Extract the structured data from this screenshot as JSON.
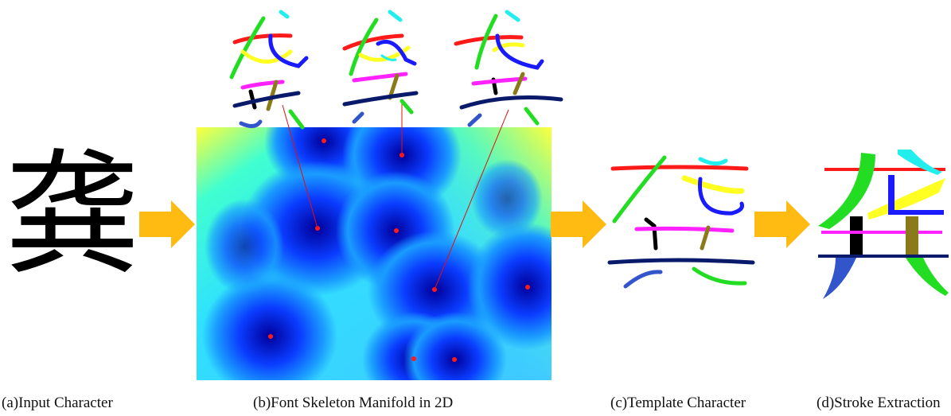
{
  "input_character": "龚",
  "captions": {
    "a": "(a)Input Character",
    "b": "(b)Font Skeleton Manifold in 2D",
    "c": "(c)Template Character",
    "d": "(d)Stroke Extraction"
  },
  "colors": {
    "arrow": "#ffbb11",
    "manifold_low": "#0000b8",
    "manifold_high": "#ffff40",
    "point": "#ff1a1a",
    "stroke_red": "#ff1a1a",
    "stroke_green": "#22dd22",
    "stroke_yellow": "#ffff22",
    "stroke_blue": "#1a1aff",
    "stroke_cyan": "#22eeee",
    "stroke_black": "#000000",
    "stroke_magenta": "#ff22ff",
    "stroke_olive": "#8a7a1a",
    "stroke_navy": "#0a1a6a",
    "stroke_steel": "#3355cc"
  }
}
